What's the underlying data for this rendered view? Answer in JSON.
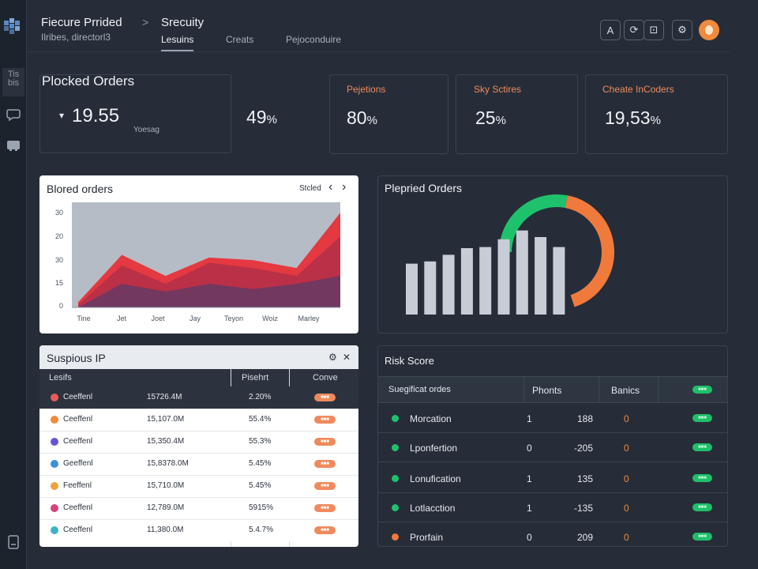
{
  "sidebar": {
    "items": [
      {
        "icon": "grid-logo-icon"
      },
      {
        "label": "Tis\nbis"
      },
      {
        "icon": "chat-icon"
      },
      {
        "icon": "box-icon"
      },
      {
        "icon": "document-icon"
      }
    ]
  },
  "header": {
    "title": "Fiecure Prrided",
    "subtitle": "Ilribes, directorl3",
    "chevron": ">",
    "section": "Srecuity",
    "tabs": [
      {
        "label": "Lesuins",
        "active": true
      },
      {
        "label": "Creats"
      },
      {
        "label": "Pejoconduire"
      }
    ],
    "buttons": [
      {
        "glyph": "A",
        "icon": "translate-icon"
      },
      {
        "glyph": "⟳",
        "icon": "refresh-icon"
      },
      {
        "glyph": "⊡",
        "icon": "export-icon"
      },
      {
        "glyph": "⚙",
        "icon": "settings-icon"
      }
    ]
  },
  "stats": {
    "main": {
      "title": "Plocked Orders",
      "value": "19.55",
      "arrow": "▾",
      "sub": "Yoesag"
    },
    "items": [
      {
        "title": "",
        "value": "49",
        "unit": "%"
      },
      {
        "title": "Pejetions",
        "value": "80",
        "unit": "%"
      },
      {
        "title": "Sky Sctires",
        "value": "25",
        "unit": "%"
      },
      {
        "title": "Cheate InCoders",
        "value": "19,53",
        "unit": "%"
      }
    ]
  },
  "blocked_panel": {
    "title": "Blored orders",
    "control": "Stcled",
    "prev": "‹",
    "next": "›"
  },
  "predicted_panel": {
    "title": "Plepried Orders"
  },
  "chart_data": [
    {
      "type": "area",
      "title": "Blored orders",
      "x": [
        "Tine",
        "Jet",
        "Joet",
        "Jay",
        "Teyon",
        "Woiz",
        "Marley"
      ],
      "ylabels": [
        "0",
        "15",
        "30",
        "20",
        "30"
      ],
      "ylim": [
        0,
        40
      ],
      "series": [
        {
          "values": [
            2,
            20,
            12,
            19,
            18,
            15,
            36
          ],
          "color": "#e7323a"
        },
        {
          "values": [
            1,
            16,
            9,
            17,
            15,
            12,
            27
          ],
          "color": "#b53048"
        },
        {
          "values": [
            0,
            9,
            6,
            9,
            7,
            9,
            12
          ],
          "color": "#6a3a62"
        }
      ]
    },
    {
      "type": "bar",
      "title": "Plepried Orders",
      "values": [
        46,
        48,
        54,
        60,
        61,
        68,
        76,
        70,
        61
      ],
      "ylim": [
        0,
        100
      ],
      "gauge": {
        "green_fraction": 0.28,
        "orange_fraction": 0.42,
        "green": "#1fc26c",
        "orange": "#f07a3c"
      }
    }
  ],
  "suspicious": {
    "title": "Suspious IP",
    "icons": [
      "⚙",
      "✕"
    ],
    "headers": [
      "Lesifs",
      "Pisehrt",
      "Conve"
    ],
    "rows": [
      {
        "name": "Ceeffenl",
        "value": "15726.4M",
        "pct": "2.20%",
        "badge": "■■■",
        "icon_color": "#e85a5a"
      },
      {
        "name": "Ceeffenl",
        "value": "15,107.0M",
        "pct": "55.4%",
        "badge": "■■■",
        "icon_color": "#f08a3c"
      },
      {
        "name": "Ceeffenl",
        "value": "15,350.4M",
        "pct": "55.3%",
        "badge": "■■■",
        "icon_color": "#6a52d6"
      },
      {
        "name": "Geeffenl",
        "value": "15,8378.0M",
        "pct": "5.45%",
        "badge": "■■■",
        "icon_color": "#3f8fd6"
      },
      {
        "name": "Feeffenl",
        "value": "15,710.0M",
        "pct": "5.45%",
        "badge": "■■■",
        "icon_color": "#f0a23c"
      },
      {
        "name": "Ceeffenl",
        "value": "12,789.0M",
        "pct": "5915%",
        "badge": "■■■",
        "icon_color": "#d6427a"
      },
      {
        "name": "Ceeffenl",
        "value": "11,380.0M",
        "pct": "5.4.7%",
        "badge": "■■■",
        "icon_color": "#3fb3c6"
      }
    ]
  },
  "risk": {
    "title": "Risk Score",
    "headers": [
      "Suegificat ordes",
      "Phonts",
      "Banics",
      ""
    ],
    "head_pill": "■■■",
    "rows": [
      {
        "name": "Morcation",
        "a": "1",
        "b": "188",
        "c": "0",
        "dot": "#1fc26c",
        "pill": "■■■"
      },
      {
        "name": "Lponfertion",
        "a": "0",
        "b": "-205",
        "c": "0",
        "dot": "#1fc26c",
        "pill": "■■■"
      },
      {
        "name": "Lonufication",
        "a": "1",
        "b": "135",
        "c": "0",
        "dot": "#1fc26c",
        "pill": "■■■"
      },
      {
        "name": "Lotlacction",
        "a": "1",
        "b": "-135",
        "c": "0",
        "dot": "#1fc26c",
        "pill": "■■■"
      },
      {
        "name": "Prorfain",
        "a": "0",
        "b": "209",
        "c": "0",
        "dot": "#f07a3c",
        "pill": "■■■"
      }
    ]
  }
}
